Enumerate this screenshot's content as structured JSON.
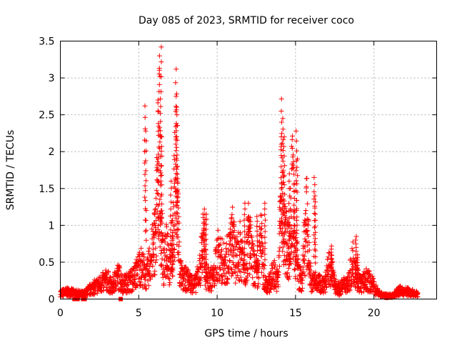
{
  "chart_data": {
    "type": "scatter",
    "title": "Day 085 of 2023, SRMTID for receiver coco",
    "xlabel": "GPS time / hours",
    "ylabel": "SRMTID / TECUs",
    "xlim": [
      0,
      24
    ],
    "ylim": [
      0,
      3.5
    ],
    "x_ticks": [
      0,
      5,
      10,
      15,
      20
    ],
    "x_tick_labels": [
      "0",
      "5",
      "10",
      "15",
      "20"
    ],
    "y_ticks": [
      0,
      0.5,
      1,
      1.5,
      2,
      2.5,
      3,
      3.5
    ],
    "y_tick_labels": [
      "0",
      "0.5",
      "1",
      "1.5",
      "2",
      "2.5",
      "3",
      "3.5"
    ],
    "grid": true,
    "marker": "plus",
    "series": [
      {
        "name": "SRMTID",
        "color": "#ff0000",
        "envelope_x": [
          0,
          0.5,
          1,
          1.5,
          2,
          2.5,
          3,
          3.3,
          3.5,
          3.7,
          4,
          4.3,
          4.6,
          4.9,
          5.1,
          5.3,
          5.5,
          5.7,
          5.9,
          6.1,
          6.3,
          6.45,
          6.6,
          6.8,
          7.0,
          7.2,
          7.4,
          7.6,
          7.8,
          8.0,
          8.3,
          8.6,
          8.9,
          9.1,
          9.3,
          9.5,
          9.8,
          10.0,
          10.2,
          10.5,
          10.8,
          11.0,
          11.2,
          11.5,
          11.8,
          12.0,
          12.3,
          12.6,
          12.8,
          13.0,
          13.3,
          13.6,
          13.9,
          14.1,
          14.3,
          14.6,
          14.8,
          15.0,
          15.2,
          15.4,
          15.7,
          16.0,
          16.3,
          16.6,
          16.9,
          17.2,
          17.5,
          17.8,
          18.1,
          18.4,
          18.7,
          18.9,
          19.2,
          19.5,
          19.8,
          20.1,
          20.4,
          20.7,
          21.0,
          21.3,
          21.6,
          21.9,
          22.2,
          22.5,
          22.8
        ],
        "envelope_y": [
          0.12,
          0.15,
          0.12,
          0.1,
          0.22,
          0.3,
          0.4,
          0.22,
          0.4,
          0.48,
          0.3,
          0.35,
          0.4,
          0.55,
          0.72,
          0.6,
          0.45,
          0.75,
          1.0,
          1.4,
          3.45,
          1.3,
          0.6,
          1.25,
          0.55,
          1.35,
          3.15,
          0.6,
          0.4,
          0.42,
          0.35,
          0.3,
          0.6,
          1.22,
          0.5,
          0.4,
          0.45,
          0.92,
          0.85,
          0.7,
          0.95,
          1.25,
          0.75,
          1.05,
          0.65,
          1.3,
          0.7,
          0.45,
          1.3,
          0.35,
          0.3,
          0.55,
          0.35,
          2.6,
          1.3,
          1.0,
          2.28,
          1.0,
          0.5,
          0.35,
          1.65,
          0.3,
          0.4,
          0.3,
          0.35,
          0.7,
          0.3,
          0.2,
          0.3,
          0.35,
          0.85,
          0.45,
          0.3,
          0.4,
          0.35,
          0.2,
          0.1,
          0.07,
          0.06,
          0.08,
          0.18,
          0.15,
          0.16,
          0.12,
          0.1
        ],
        "spikes_x": [
          5.4,
          5.45,
          6.25,
          6.35,
          6.42,
          6.48,
          7.05,
          7.15,
          7.38,
          7.42,
          7.46,
          9.2,
          9.3,
          11.75,
          12.55,
          13.05,
          14.1,
          14.2,
          14.28,
          14.6,
          14.9,
          15.05,
          15.1,
          16.2,
          16.25,
          17.3,
          18.85,
          18.95
        ],
        "spikes_y": [
          2.62,
          2.28,
          2.7,
          3.3,
          3.42,
          2.2,
          1.6,
          0.9,
          3.12,
          2.5,
          1.8,
          1.22,
          1.15,
          1.3,
          1.12,
          1.3,
          2.55,
          2.45,
          2.2,
          1.7,
          1.55,
          2.28,
          1.9,
          1.65,
          1.4,
          0.72,
          0.85,
          0.6
        ],
        "flag_x": [
          0.9,
          1.0,
          1.1,
          1.45,
          1.55,
          3.85
        ],
        "flag_y": [
          0,
          0,
          0,
          0,
          0,
          0
        ]
      }
    ]
  }
}
